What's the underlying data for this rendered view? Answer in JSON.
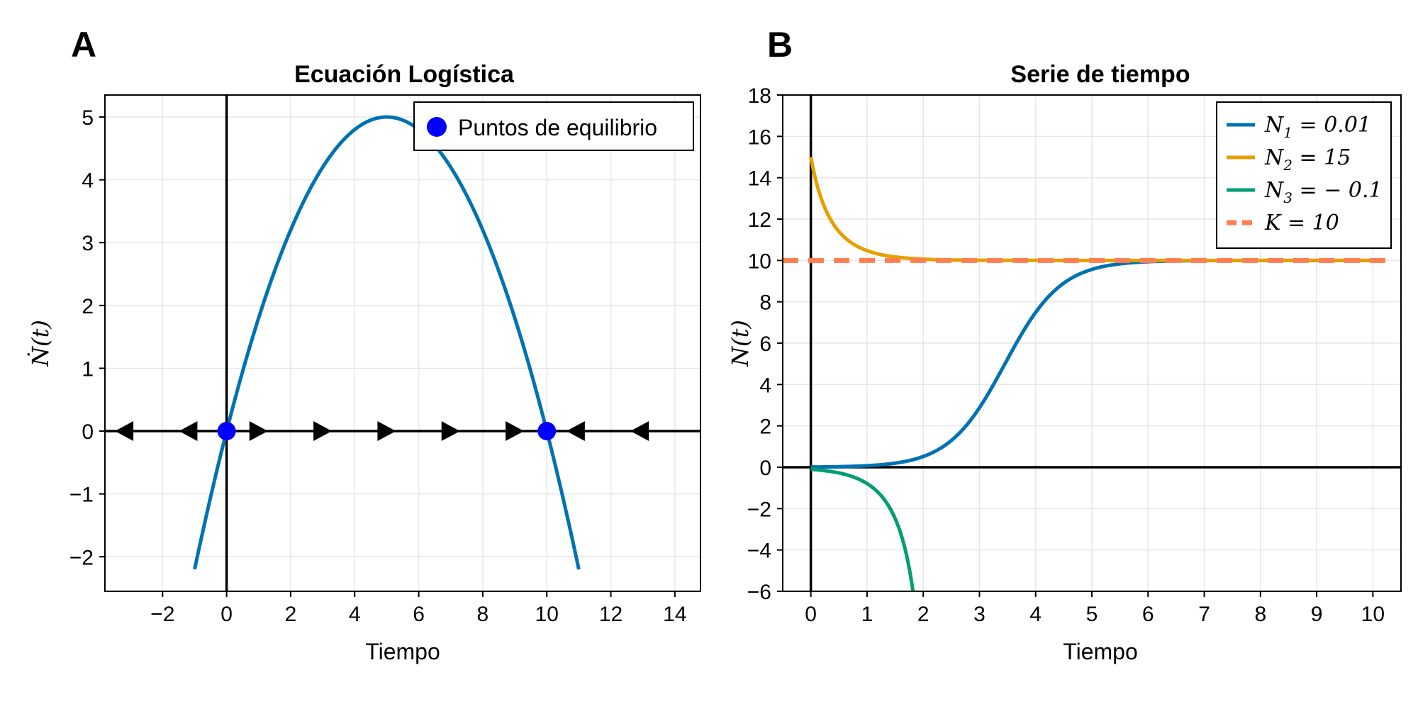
{
  "figure": {
    "panel_labels": [
      "A",
      "B"
    ]
  },
  "chart_data": [
    {
      "type": "line",
      "title": "Ecuación Logística",
      "xlabel": "Tiempo",
      "ylabel": "Ṅ(t)",
      "xlim": [
        -3.8,
        14.8
      ],
      "ylim": [
        -2.55,
        5.35
      ],
      "xticks": [
        -2,
        0,
        2,
        4,
        6,
        8,
        10,
        12,
        14
      ],
      "xtick_labels": [
        "−2",
        "0",
        "2",
        "4",
        "6",
        "8",
        "10",
        "12",
        "14"
      ],
      "yticks": [
        -2,
        -1,
        0,
        1,
        2,
        3,
        4,
        5
      ],
      "ytick_labels": [
        "−2",
        "−1",
        "0",
        "1",
        "2",
        "3",
        "4",
        "5"
      ],
      "grid": true,
      "legend_position": "top-right",
      "series": [
        {
          "kind": "function",
          "formula": "0.2*x*(10-x)",
          "x_range": [
            -1,
            11
          ],
          "color": "#0072b2"
        },
        {
          "kind": "points",
          "name": "Puntos de equilibrio",
          "x": [
            0,
            10
          ],
          "y": [
            0,
            0
          ],
          "color": "#0000ff"
        }
      ],
      "arrows": [
        {
          "x": -3.2,
          "direction": "left"
        },
        {
          "x": -1.2,
          "direction": "left"
        },
        {
          "x": 1.0,
          "direction": "right"
        },
        {
          "x": 3.0,
          "direction": "right"
        },
        {
          "x": 5.0,
          "direction": "right"
        },
        {
          "x": 7.0,
          "direction": "right"
        },
        {
          "x": 9.0,
          "direction": "right"
        },
        {
          "x": 10.9,
          "direction": "left"
        },
        {
          "x": 12.9,
          "direction": "left"
        }
      ],
      "reference_lines": {
        "x": 0,
        "y": 0
      }
    },
    {
      "type": "line",
      "title": "Serie de tiempo",
      "xlabel": "Tiempo",
      "ylabel": "N(t)",
      "xlim": [
        -0.5,
        10.5
      ],
      "ylim": [
        -6,
        18
      ],
      "xticks": [
        0,
        1,
        2,
        3,
        4,
        5,
        6,
        7,
        8,
        9,
        10
      ],
      "xtick_labels": [
        "0",
        "1",
        "2",
        "3",
        "4",
        "5",
        "6",
        "7",
        "8",
        "9",
        "10"
      ],
      "yticks": [
        -6,
        -4,
        -2,
        0,
        2,
        4,
        6,
        8,
        10,
        12,
        14,
        16,
        18
      ],
      "ytick_labels": [
        "−6",
        "−4",
        "−2",
        "0",
        "2",
        "4",
        "6",
        "8",
        "10",
        "12",
        "14",
        "16",
        "18"
      ],
      "grid": true,
      "legend_position": "top-right",
      "growth_rate": 2,
      "series": [
        {
          "name": "N1 = 0.01",
          "legend_base": "N",
          "legend_sub": "1",
          "legend_rest": " = 0.01",
          "N0": 0.01,
          "K": 10,
          "color": "#0072b2",
          "dash": false
        },
        {
          "name": "N2 = 15",
          "legend_base": "N",
          "legend_sub": "2",
          "legend_rest": " = 15",
          "N0": 15,
          "K": 10,
          "color": "#e69f00",
          "dash": false
        },
        {
          "name": "N3 = −0.1",
          "legend_base": "N",
          "legend_sub": "3",
          "legend_rest": " = − 0.1",
          "N0": -0.1,
          "K": 10,
          "color": "#009e73",
          "dash": false
        },
        {
          "name": "K = 10",
          "legend_base": "K",
          "legend_sub": "",
          "legend_rest": " = 10",
          "constant": 10,
          "color": "#ff7f50",
          "dash": true
        }
      ],
      "reference_lines": {
        "x": 0,
        "y": 0
      }
    }
  ]
}
